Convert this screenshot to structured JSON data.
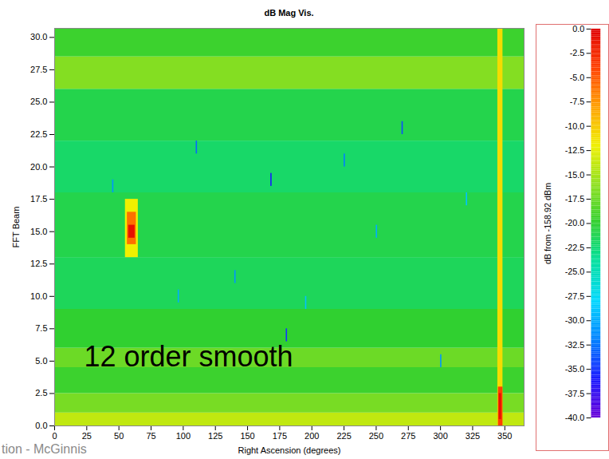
{
  "chart_data": {
    "type": "heatmap",
    "title": "dB Mag Vis.",
    "x_label": "Right Ascension (degrees)",
    "y_label": "FFT Beam",
    "xlim": [
      0,
      365
    ],
    "xticks": [
      0,
      25,
      50,
      75,
      100,
      125,
      150,
      175,
      200,
      225,
      250,
      275,
      300,
      325,
      350
    ],
    "ylim": [
      0,
      30.7
    ],
    "yticks": [
      {
        "value": 0,
        "label": "0.0"
      },
      {
        "value": 2.5,
        "label": "2.5"
      },
      {
        "value": 5,
        "label": "5.0"
      },
      {
        "value": 7.5,
        "label": "7.5"
      },
      {
        "value": 10,
        "label": "10.0"
      },
      {
        "value": 12.5,
        "label": "12.5"
      },
      {
        "value": 15,
        "label": "15.0"
      },
      {
        "value": 17.5,
        "label": "17.5"
      },
      {
        "value": 20,
        "label": "20.0"
      },
      {
        "value": 22.5,
        "label": "22.5"
      },
      {
        "value": 25,
        "label": "25.0"
      },
      {
        "value": 27.5,
        "label": "27.5"
      },
      {
        "value": 30,
        "label": "30.0"
      }
    ],
    "cells": [
      [
        0,
        365,
        0,
        1,
        -14
      ],
      [
        0,
        365,
        1,
        2.5,
        -17
      ],
      [
        0,
        365,
        2.5,
        4.5,
        -19.5
      ],
      [
        0,
        365,
        4.5,
        6,
        -17.5
      ],
      [
        0,
        365,
        6,
        9,
        -20
      ],
      [
        0,
        365,
        9,
        13,
        -21.5
      ],
      [
        0,
        365,
        13,
        18,
        -21
      ],
      [
        0,
        365,
        18,
        22,
        -22
      ],
      [
        0,
        365,
        22,
        26,
        -21
      ],
      [
        0,
        365,
        26,
        28.5,
        -16.5
      ],
      [
        0,
        365,
        28.5,
        30.7,
        -19.5
      ],
      [
        96,
        97,
        9.5,
        10.5,
        -30
      ],
      [
        110,
        111,
        21,
        22,
        -33
      ],
      [
        140,
        141,
        11,
        12,
        -31
      ],
      [
        168,
        169,
        18.5,
        19.5,
        -36
      ],
      [
        195,
        196,
        9,
        10,
        -29
      ],
      [
        225,
        226,
        20,
        21,
        -32
      ],
      [
        250,
        251,
        14.5,
        15.5,
        -30
      ],
      [
        270,
        271,
        22.5,
        23.5,
        -34
      ],
      [
        300,
        301,
        4.5,
        5.5,
        -31
      ],
      [
        320,
        321,
        17,
        18,
        -29
      ],
      [
        180,
        181,
        6.5,
        7.5,
        -35
      ],
      [
        45,
        46,
        18,
        19,
        -31
      ],
      [
        55,
        65,
        13,
        17.5,
        -12
      ],
      [
        56.5,
        63.5,
        14,
        16.5,
        -6
      ],
      [
        57.5,
        62.5,
        14.5,
        15.5,
        -1
      ],
      [
        344.5,
        348.5,
        0,
        30.7,
        -11
      ],
      [
        345,
        348.5,
        0,
        3,
        -4
      ],
      [
        345.5,
        347.5,
        0.5,
        2.5,
        -1
      ]
    ],
    "colorbar": {
      "label": "dB from -158.92 dBm",
      "range": [
        -40,
        0
      ],
      "ticks": [
        {
          "value": 0,
          "label": "0.0"
        },
        {
          "value": -2.5,
          "label": "-2.5"
        },
        {
          "value": -5,
          "label": "-5.0"
        },
        {
          "value": -7.5,
          "label": "-7.5"
        },
        {
          "value": -10,
          "label": "-10.0"
        },
        {
          "value": -12.5,
          "label": "-12.5"
        },
        {
          "value": -15,
          "label": "-15.0"
        },
        {
          "value": -17.5,
          "label": "-17.5"
        },
        {
          "value": -20,
          "label": "-20.0"
        },
        {
          "value": -22.5,
          "label": "-22.5"
        },
        {
          "value": -25,
          "label": "-25.0"
        },
        {
          "value": -27.5,
          "label": "-27.5"
        },
        {
          "value": -30,
          "label": "-30.0"
        },
        {
          "value": -32.5,
          "label": "-32.5"
        },
        {
          "value": -35,
          "label": "-35.0"
        },
        {
          "value": -37.5,
          "label": "-37.5"
        },
        {
          "value": -40,
          "label": "-40.0"
        }
      ]
    },
    "annotations": [
      "12 order smooth",
      "tion - McGinnis"
    ]
  }
}
